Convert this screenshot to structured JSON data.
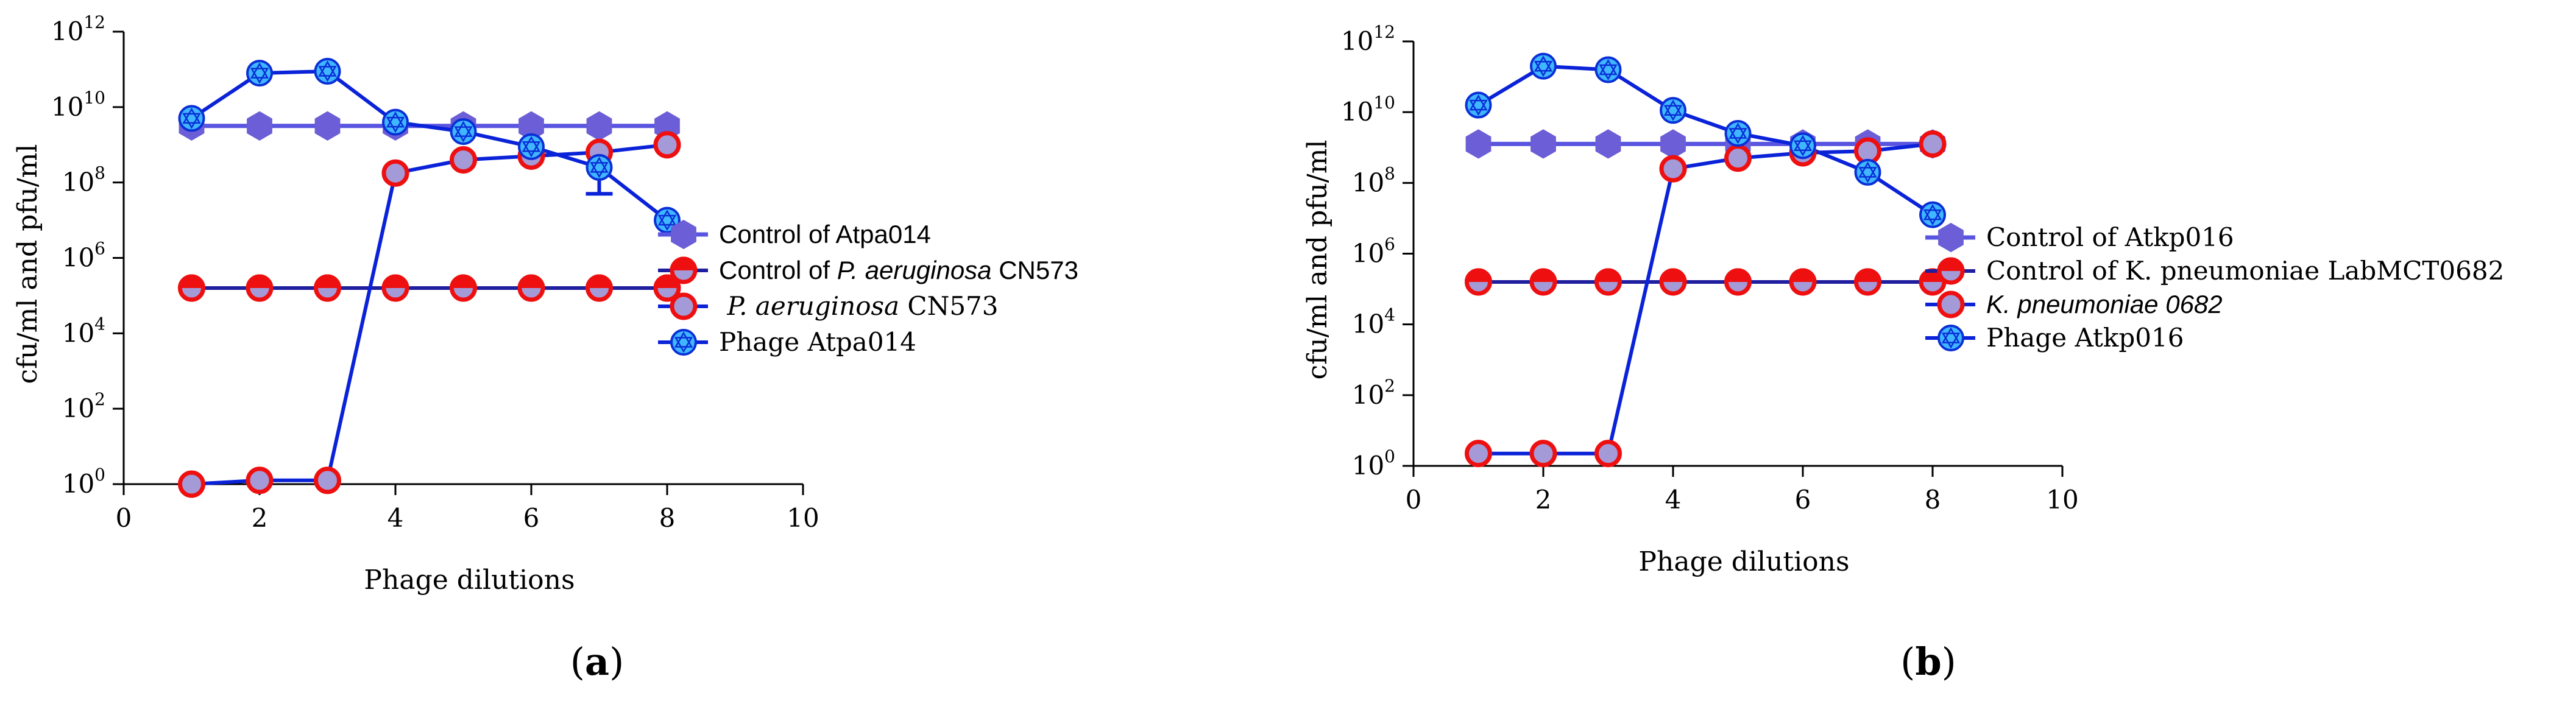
{
  "colors": {
    "axis": "#000000",
    "control_phage_fill": "#6b5ed6",
    "control_phage_line": "#5a55e0",
    "bacteria_edge": "#ee1010",
    "bacteria_fill": "#a59ad8",
    "bacteria_line": "#1e1e9e",
    "phage_fill": "#3fb6ff",
    "phage_line": "#0a22d8",
    "phage_edge": "#0a2fd6"
  },
  "chart_data": [
    {
      "type": "line",
      "panel_label": "a",
      "xlabel": "Phage dilutions",
      "ylabel": "cfu/ml and pfu/ml",
      "y_scale": "log10",
      "xlim": [
        0,
        10
      ],
      "ylim_exp": [
        0,
        12
      ],
      "x_ticks": [
        "0",
        "2",
        "4",
        "6",
        "8",
        "10"
      ],
      "y_tick_base": "10",
      "y_tick_exps": [
        "0",
        "2",
        "4",
        "6",
        "8",
        "10",
        "12"
      ],
      "x": [
        1,
        2,
        3,
        4,
        5,
        6,
        7,
        8
      ],
      "series": [
        {
          "name": "Control of Atpa014",
          "label_parts": [
            {
              "text": "Control of Atpa014",
              "style": "sans"
            }
          ],
          "marker": "hexagon",
          "log10_values": [
            9.5,
            9.5,
            9.5,
            9.5,
            9.5,
            9.5,
            9.5,
            9.5
          ]
        },
        {
          "name": "Control of P. aeruginosa CN573",
          "label_parts": [
            {
              "text": "Control of ",
              "style": "sans"
            },
            {
              "text": "P. aeruginosa",
              "style": "sans-italic"
            },
            {
              "text": " CN573",
              "style": "sans"
            }
          ],
          "marker": "half-circle",
          "log10_values": [
            5.2,
            5.2,
            5.2,
            5.2,
            5.2,
            5.2,
            5.2,
            5.2
          ]
        },
        {
          "name": "P. aeruginosa CN573",
          "label_parts": [
            {
              "text": " P. aeruginosa",
              "style": "serif-italic"
            },
            {
              "text": " CN573",
              "style": "serif"
            }
          ],
          "marker": "circle",
          "log10_values": [
            0.0,
            0.1,
            0.1,
            8.25,
            8.6,
            8.7,
            8.8,
            9.0
          ]
        },
        {
          "name": "Phage Atpa014",
          "label_parts": [
            {
              "text": "Phage Atpa014",
              "style": "serif"
            }
          ],
          "marker": "star-of-david",
          "log10_values": [
            9.7,
            10.9,
            10.95,
            9.6,
            9.35,
            8.95,
            8.4,
            7.0
          ],
          "error_bar": {
            "index": 6,
            "lower": 7.7
          }
        }
      ]
    },
    {
      "type": "line",
      "panel_label": "b",
      "xlabel": "Phage dilutions",
      "ylabel": "cfu/ml and pfu/ml",
      "y_scale": "log10",
      "xlim": [
        0,
        10
      ],
      "ylim_exp": [
        0,
        12
      ],
      "x_ticks": [
        "0",
        "2",
        "4",
        "6",
        "8",
        "10"
      ],
      "y_tick_base": "10",
      "y_tick_exps": [
        "0",
        "2",
        "4",
        "6",
        "8",
        "10",
        "12"
      ],
      "x": [
        1,
        2,
        3,
        4,
        5,
        6,
        7,
        8
      ],
      "series": [
        {
          "name": "Control of Atkp016",
          "label_parts": [
            {
              "text": "Control of Atkp016",
              "style": "serif"
            }
          ],
          "marker": "hexagon",
          "log10_values": [
            9.1,
            9.1,
            9.1,
            9.1,
            9.1,
            9.1,
            9.1,
            9.1
          ]
        },
        {
          "name": "Control of K. pneumoniae LabMCT0682",
          "label_parts": [
            {
              "text": "Control of K. pneumoniae LabMCT0682",
              "style": "serif"
            }
          ],
          "marker": "half-circle",
          "log10_values": [
            5.2,
            5.2,
            5.2,
            5.2,
            5.2,
            5.2,
            5.2,
            5.2
          ]
        },
        {
          "name": "K. pneumoniae 0682",
          "label_parts": [
            {
              "text": "K. pneumoniae 0682",
              "style": "sans-italic"
            }
          ],
          "marker": "circle",
          "log10_values": [
            0.35,
            0.35,
            0.35,
            8.4,
            8.7,
            8.85,
            8.9,
            9.1
          ]
        },
        {
          "name": "Phage Atkp016",
          "label_parts": [
            {
              "text": "Phage Atkp016",
              "style": "serif"
            }
          ],
          "marker": "star-of-david",
          "log10_values": [
            10.2,
            11.3,
            11.2,
            10.05,
            9.4,
            9.05,
            8.3,
            7.1
          ]
        }
      ]
    }
  ]
}
